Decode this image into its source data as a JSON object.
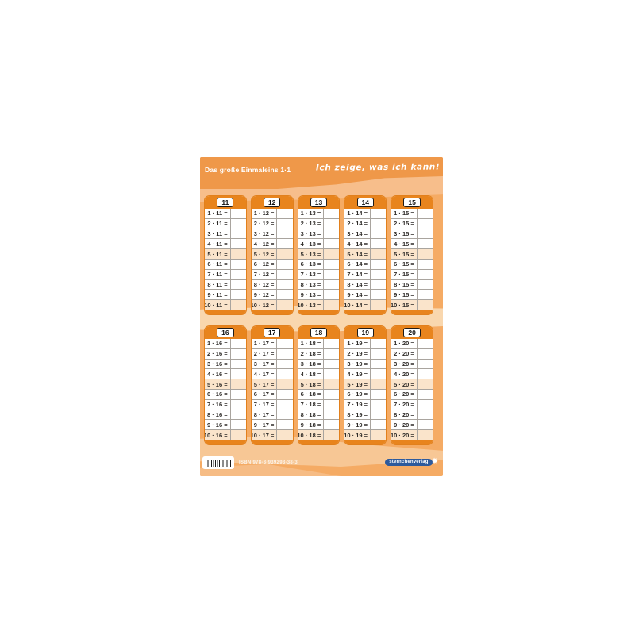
{
  "poster": {
    "title_left": "Das große Einmaleins 1·1",
    "title_right": "Ich zeige, was ich kann!"
  },
  "cards": [
    {
      "number": "11",
      "rows": [
        "1 · 11 =",
        "2 · 11 =",
        "3 · 11 =",
        "4 · 11 =",
        "5 · 11 =",
        "6 · 11 =",
        "7 · 11 =",
        "8 · 11 =",
        "9 · 11 =",
        "10 · 11 ="
      ]
    },
    {
      "number": "12",
      "rows": [
        "1 · 12 =",
        "2 · 12 =",
        "3 · 12 =",
        "4 · 12 =",
        "5 · 12 =",
        "6 · 12 =",
        "7 · 12 =",
        "8 · 12 =",
        "9 · 12 =",
        "10 · 12 ="
      ]
    },
    {
      "number": "13",
      "rows": [
        "1 · 13 =",
        "2 · 13 =",
        "3 · 13 =",
        "4 · 13 =",
        "5 · 13 =",
        "6 · 13 =",
        "7 · 13 =",
        "8 · 13 =",
        "9 · 13 =",
        "10 · 13 ="
      ]
    },
    {
      "number": "14",
      "rows": [
        "1 · 14 =",
        "2 · 14 =",
        "3 · 14 =",
        "4 · 14 =",
        "5 · 14 =",
        "6 · 14 =",
        "7 · 14 =",
        "8 · 14 =",
        "9 · 14 =",
        "10 · 14 ="
      ]
    },
    {
      "number": "15",
      "rows": [
        "1 · 15 =",
        "2 · 15 =",
        "3 · 15 =",
        "4 · 15 =",
        "5 · 15 =",
        "6 · 15 =",
        "7 · 15 =",
        "8 · 15 =",
        "9 · 15 =",
        "10 · 15 ="
      ]
    },
    {
      "number": "16",
      "rows": [
        "1 · 16 =",
        "2 · 16 =",
        "3 · 16 =",
        "4 · 16 =",
        "5 · 16 =",
        "6 · 16 =",
        "7 · 16 =",
        "8 · 16 =",
        "9 · 16 =",
        "10 · 16 ="
      ]
    },
    {
      "number": "17",
      "rows": [
        "1 · 17 =",
        "2 · 17 =",
        "3 · 17 =",
        "4 · 17 =",
        "5 · 17 =",
        "6 · 17 =",
        "7 · 17 =",
        "8 · 17 =",
        "9 · 17 =",
        "10 · 17 ="
      ]
    },
    {
      "number": "18",
      "rows": [
        "1 · 18 =",
        "2 · 18 =",
        "3 · 18 =",
        "4 · 18 =",
        "5 · 18 =",
        "6 · 18 =",
        "7 · 18 =",
        "8 · 18 =",
        "9 · 18 =",
        "10 · 18 ="
      ]
    },
    {
      "number": "19",
      "rows": [
        "1 · 19 =",
        "2 · 19 =",
        "3 · 19 =",
        "4 · 19 =",
        "5 · 19 =",
        "6 · 19 =",
        "7 · 19 =",
        "8 · 19 =",
        "9 · 19 =",
        "10 · 19 ="
      ]
    },
    {
      "number": "20",
      "rows": [
        "1 · 20 =",
        "2 · 20 =",
        "3 · 20 =",
        "4 · 20 =",
        "5 · 20 =",
        "6 · 20 =",
        "7 · 20 =",
        "8 · 20 =",
        "9 · 20 =",
        "10 · 20 ="
      ]
    }
  ],
  "footer": {
    "isbn": "ISBN 978-3-939293-38-3",
    "publisher": "sternchenverlag",
    "star_icon": "✹"
  },
  "colors": {
    "base_orange": "#F5AB64",
    "band_dark_orange": "#EF9849",
    "band_cream": "#F9D7AE",
    "card_orange": "#E8841D",
    "row_highlight": "#FAE4CB",
    "logo_blue": "#2D5A9C"
  }
}
